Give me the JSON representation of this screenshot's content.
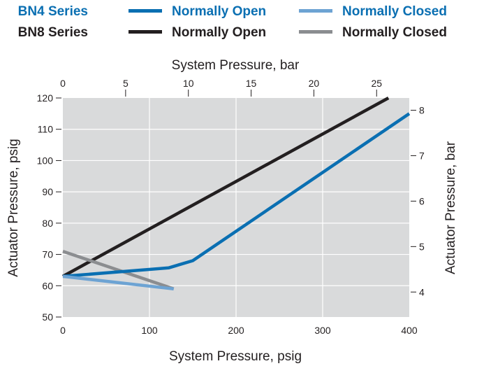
{
  "colors": {
    "bn4_open": "#0a6fb2",
    "bn4_closed": "#6da3d3",
    "bn8_open": "#231f20",
    "bn8_closed": "#8b8d90",
    "plot_bg": "#d9dadb",
    "grid": "#ffffff",
    "bn4_text": "#0a6fb2"
  },
  "legend": {
    "bn4_label": "BN4 Series",
    "bn8_label": "BN8 Series",
    "bn4_open": "Normally Open",
    "bn4_closed": "Normally Closed",
    "bn8_open": "Normally Open",
    "bn8_closed": "Normally Closed"
  },
  "chart_data": {
    "type": "line",
    "xlabel": "System Pressure, psig",
    "ylabel": "Actuator Pressure, psig",
    "x2label": "System Pressure, bar",
    "y2label": "Actuator Pressure, bar",
    "xlim": [
      0,
      400
    ],
    "ylim": [
      50,
      120
    ],
    "x2lim": [
      0,
      27.6
    ],
    "y2lim": [
      3.45,
      8.27
    ],
    "x_ticks": [
      0,
      100,
      200,
      300,
      400
    ],
    "y_ticks": [
      50,
      60,
      70,
      80,
      90,
      100,
      110,
      120
    ],
    "x2_ticks": [
      0,
      5,
      10,
      15,
      20,
      25
    ],
    "y2_ticks": [
      4,
      5,
      6,
      7,
      8
    ],
    "grid": true,
    "legend_position": "top",
    "series": [
      {
        "key": "bn8_open",
        "x": [
          0,
          376
        ],
        "y": [
          63,
          120
        ]
      },
      {
        "key": "bn8_closed",
        "x": [
          0,
          128
        ],
        "y": [
          71,
          59
        ]
      },
      {
        "key": "bn4_open",
        "x": [
          0,
          122,
          150,
          400
        ],
        "y": [
          63,
          65.7,
          68,
          115
        ]
      },
      {
        "key": "bn4_closed",
        "x": [
          0,
          128
        ],
        "y": [
          63,
          59
        ]
      }
    ]
  }
}
